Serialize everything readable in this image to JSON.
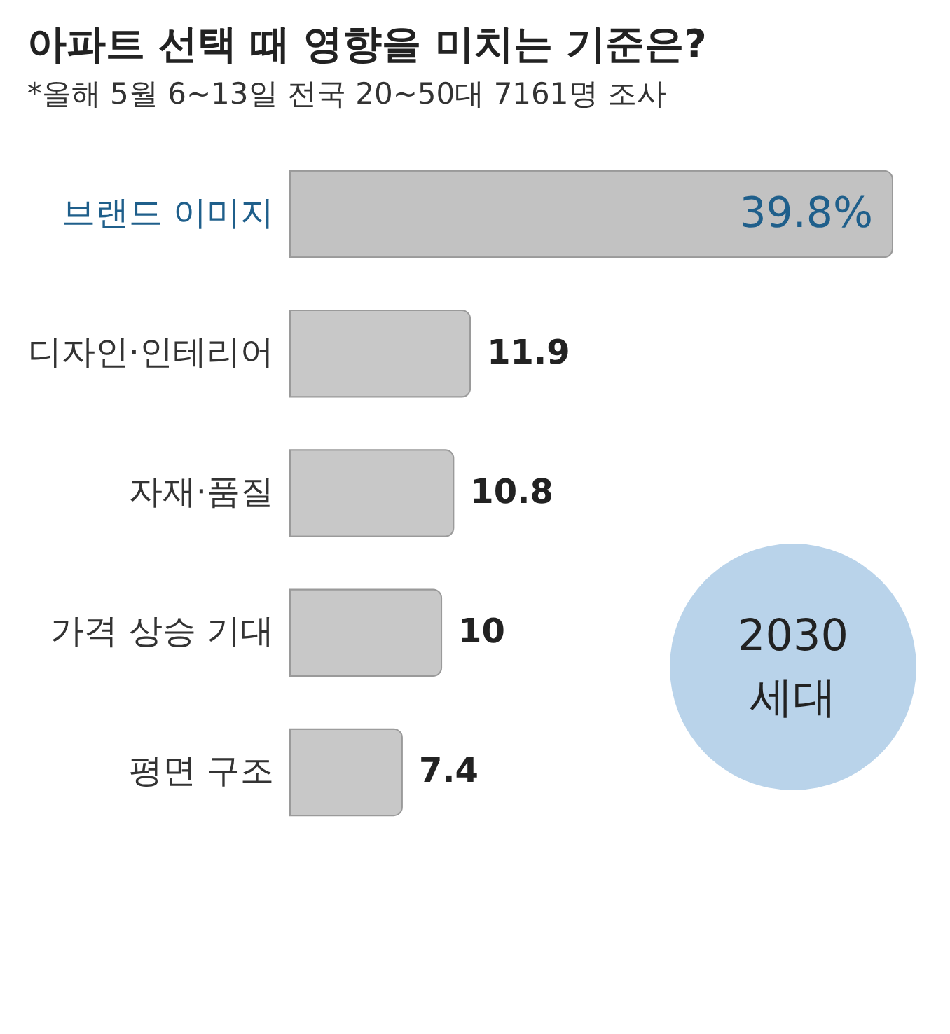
{
  "chart_data": {
    "type": "bar",
    "orientation": "horizontal",
    "title": "아파트 선택 때 영향을 미치는 기준은?",
    "subtitle": "*올해 5월 6~13일 전국 20~50대 7161명 조사",
    "categories": [
      "브랜드 이미지",
      "디자인·인테리어",
      "자재·품질",
      "가격 상승 기대",
      "평면 구조"
    ],
    "values": [
      39.8,
      11.9,
      10.8,
      10,
      7.4
    ],
    "colors": [
      "#c2c2c2",
      "#c8c8c8",
      "#c8c8c8",
      "#c8c8c8",
      "#c8c8c8"
    ],
    "value_labels": [
      "39.8%",
      "11.9",
      "10.8",
      "10",
      "7.4"
    ],
    "annotations": [
      "2030 세대"
    ],
    "grid": false
  }
}
